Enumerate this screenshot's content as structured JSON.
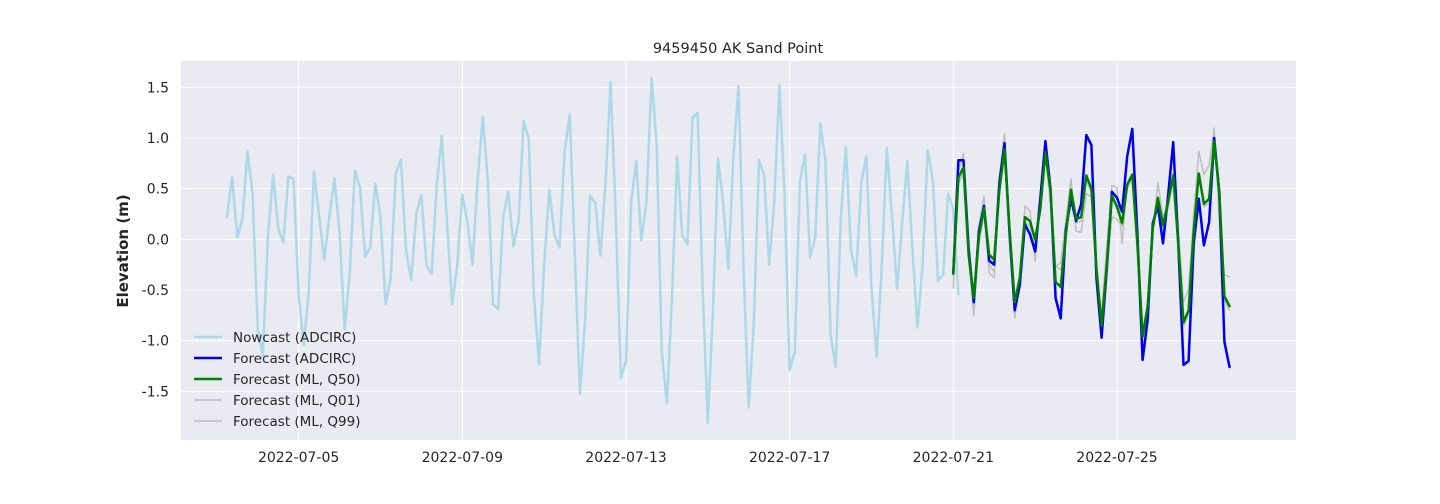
{
  "chart_data": {
    "type": "line",
    "title": "9459450 AK Sand Point",
    "xlabel": "",
    "ylabel": "Elevation (m)",
    "x_unit": "date",
    "xlim": [
      "2022-07-02T03:00",
      "2022-07-29T09:00"
    ],
    "ylim": [
      -1.98,
      1.76
    ],
    "yticks": [
      "-1.5",
      "-1.0",
      "-0.5",
      "0.0",
      "0.5",
      "1.0",
      "1.5"
    ],
    "xticks": [
      "2022-07-05",
      "2022-07-09",
      "2022-07-13",
      "2022-07-17",
      "2022-07-21",
      "2022-07-25"
    ],
    "grid": true,
    "legend_position": "lower-left",
    "colors": {
      "background": "#eaeaf2",
      "grid": "#ffffff",
      "nowcast": "#add8e6",
      "forecast_adcirc": "#0000ee",
      "forecast_ml_q50": "#008000",
      "forecast_ml_quantiles": "#bdbdbd"
    },
    "series": [
      {
        "name": "Nowcast (ADCIRC)",
        "color": "#add8e6",
        "width": 2.5,
        "x_start": "2022-07-03T06:00",
        "step_hours": 3,
        "y": [
          0.22,
          0.62,
          0.02,
          0.2,
          0.87,
          0.45,
          -0.88,
          -1.15,
          0.02,
          0.64,
          0.11,
          -0.03,
          0.62,
          0.6,
          -0.55,
          -1.04,
          -0.5,
          0.67,
          0.23,
          -0.2,
          0.22,
          0.6,
          0.06,
          -0.89,
          -0.32,
          0.68,
          0.51,
          -0.17,
          -0.08,
          0.55,
          0.22,
          -0.64,
          -0.38,
          0.65,
          0.79,
          -0.1,
          -0.4,
          0.25,
          0.44,
          -0.26,
          -0.34,
          0.53,
          1.02,
          0.17,
          -0.64,
          -0.26,
          0.44,
          0.17,
          -0.25,
          0.6,
          1.21,
          0.57,
          -0.64,
          -0.69,
          0.22,
          0.47,
          -0.07,
          0.18,
          1.17,
          0.98,
          -0.55,
          -1.23,
          -0.26,
          0.49,
          0.05,
          -0.08,
          0.86,
          1.23,
          -0.14,
          -1.53,
          -0.8,
          0.43,
          0.36,
          -0.16,
          0.55,
          1.55,
          0.24,
          -1.37,
          -1.2,
          0.36,
          0.77,
          -0.01,
          0.37,
          1.59,
          0.93,
          -1.12,
          -1.62,
          -0.58,
          0.82,
          0.04,
          -0.05,
          1.2,
          1.25,
          -0.51,
          -1.81,
          -0.71,
          0.8,
          0.36,
          -0.29,
          0.82,
          1.51,
          -0.3,
          -1.66,
          -0.83,
          0.78,
          0.63,
          -0.25,
          0.38,
          1.52,
          0.45,
          -1.29,
          -1.11,
          0.57,
          0.84,
          -0.18,
          0.02,
          1.14,
          0.78,
          -0.94,
          -1.26,
          0.21,
          0.91,
          -0.1,
          -0.36,
          0.56,
          0.82,
          -0.48,
          -1.16,
          -0.28,
          0.9,
          0.24,
          -0.49,
          0.16,
          0.77,
          -0.1,
          -0.87,
          -0.25,
          0.88,
          0.58,
          -0.41,
          -0.35,
          0.45,
          0.3,
          -0.54
        ]
      },
      {
        "name": "Forecast (ADCIRC)",
        "color": "#0000ee",
        "width": 2.5,
        "x_start": "2022-07-21T00:00",
        "step_hours": 3,
        "y": [
          -0.33,
          0.78,
          0.78,
          -0.1,
          -0.62,
          0.08,
          0.33,
          -0.21,
          -0.25,
          0.55,
          0.95,
          0.05,
          -0.7,
          -0.45,
          0.15,
          0.05,
          -0.12,
          0.4,
          0.97,
          0.5,
          -0.58,
          -0.78,
          0.09,
          0.4,
          0.18,
          0.35,
          1.03,
          0.93,
          -0.39,
          -0.97,
          -0.29,
          0.47,
          0.41,
          0.27,
          0.82,
          1.09,
          0.05,
          -1.19,
          -0.79,
          0.16,
          0.33,
          -0.04,
          0.43,
          0.96,
          -0.07,
          -1.24,
          -1.2,
          -0.04,
          0.4,
          -0.06,
          0.17,
          1.0,
          0.46,
          -1.01,
          -1.26
        ]
      },
      {
        "name": "Forecast (ML, Q50)",
        "color": "#008000",
        "width": 2.5,
        "x_start": "2022-07-21T00:00",
        "step_hours": 3,
        "y": [
          -0.34,
          0.61,
          0.71,
          -0.16,
          -0.58,
          0.03,
          0.31,
          -0.15,
          -0.2,
          0.48,
          0.89,
          0.09,
          -0.62,
          -0.38,
          0.22,
          0.18,
          0.0,
          0.3,
          0.86,
          0.48,
          -0.42,
          -0.47,
          0.04,
          0.49,
          0.2,
          0.22,
          0.63,
          0.5,
          -0.29,
          -0.85,
          -0.25,
          0.43,
          0.32,
          0.16,
          0.54,
          0.64,
          -0.05,
          -0.96,
          -0.66,
          0.11,
          0.41,
          0.14,
          0.37,
          0.63,
          -0.06,
          -0.82,
          -0.7,
          0.08,
          0.65,
          0.35,
          0.4,
          0.97,
          0.47,
          -0.56,
          -0.66
        ]
      },
      {
        "name": "Forecast (ML, Q01)",
        "color": "#bdbdbd",
        "width": 1.4,
        "x_start": "2022-07-21T00:00",
        "step_hours": 3,
        "y": [
          -0.36,
          0.55,
          0.66,
          -0.2,
          -0.75,
          -0.05,
          0.25,
          -0.25,
          -0.32,
          0.45,
          0.86,
          0.05,
          -0.76,
          -0.46,
          0.18,
          0.12,
          -0.05,
          0.26,
          0.82,
          0.42,
          -0.26,
          -0.3,
          0.02,
          0.45,
          0.16,
          0.18,
          0.58,
          0.46,
          -0.35,
          -0.9,
          -0.3,
          0.22,
          0.2,
          0.13,
          0.5,
          0.6,
          -0.08,
          -1.0,
          -0.7,
          0.08,
          0.36,
          0.1,
          0.33,
          0.58,
          -0.1,
          -0.86,
          -0.74,
          0.04,
          0.6,
          0.32,
          0.36,
          0.93,
          0.42,
          -0.6,
          -0.7
        ]
      },
      {
        "name": "Forecast (ML, Q99)",
        "color": "#bdbdbd",
        "width": 1.4,
        "x_start": "2022-07-21T00:00",
        "step_hours": 3,
        "y": [
          -0.48,
          0.67,
          0.85,
          -0.1,
          -0.55,
          0.12,
          0.43,
          -0.33,
          -0.38,
          0.6,
          1.05,
          0.1,
          -0.78,
          -0.35,
          0.33,
          0.28,
          -0.22,
          0.35,
          0.82,
          0.36,
          -0.27,
          -0.23,
          0.19,
          0.6,
          0.08,
          0.07,
          0.45,
          0.42,
          -0.4,
          -0.72,
          -0.06,
          0.53,
          0.51,
          -0.04,
          0.54,
          0.64,
          0.03,
          -0.9,
          -0.62,
          0.09,
          0.56,
          0.23,
          0.3,
          0.65,
          0.1,
          -0.62,
          -0.49,
          0.25,
          0.87,
          0.64,
          0.73,
          1.1,
          0.2,
          -0.35,
          -0.37
        ]
      }
    ]
  }
}
